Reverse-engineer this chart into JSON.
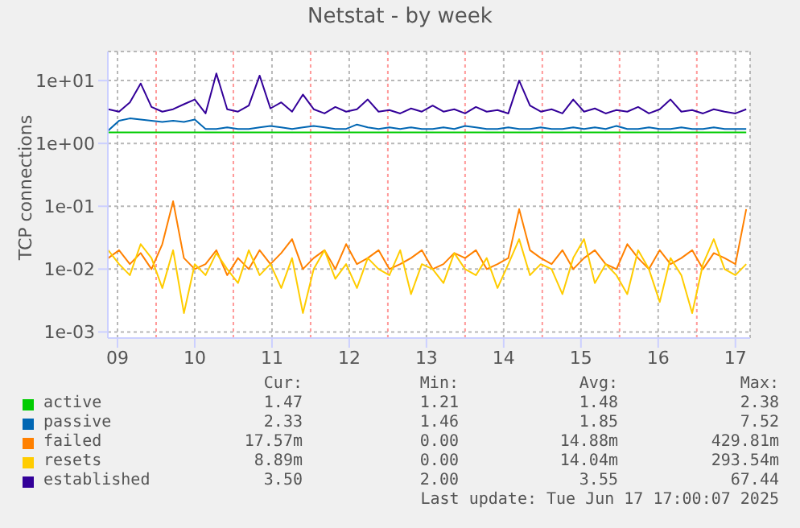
{
  "chart_data": {
    "type": "line",
    "title": "Netstat - by week",
    "ylabel": "TCP connections",
    "log": "y",
    "grid": true,
    "legend": "bottom",
    "marker": "none",
    "line_style": "solid",
    "xlim": [
      9.375,
      17.69
    ],
    "ylim": [
      0.0008,
      29
    ],
    "xticks": [
      {
        "value": 9.5,
        "label": "09"
      },
      {
        "value": 10.5,
        "label": "10"
      },
      {
        "value": 11.5,
        "label": "11"
      },
      {
        "value": 12.5,
        "label": "12"
      },
      {
        "value": 13.5,
        "label": "13"
      },
      {
        "value": 14.5,
        "label": "14"
      },
      {
        "value": 15.5,
        "label": "15"
      },
      {
        "value": 16.5,
        "label": "16"
      },
      {
        "value": 17.5,
        "label": "17"
      }
    ],
    "yticks": [
      {
        "value": 0.001,
        "label": "1e-03"
      },
      {
        "value": 0.01,
        "label": "1e-02"
      },
      {
        "value": 0.1,
        "label": "1e-01"
      },
      {
        "value": 1,
        "label": "1e+00"
      },
      {
        "value": 10,
        "label": "1e+01"
      }
    ],
    "x": [
      9.38,
      9.52,
      9.66,
      9.8,
      9.94,
      10.08,
      10.22,
      10.36,
      10.5,
      10.64,
      10.78,
      10.92,
      11.06,
      11.2,
      11.34,
      11.48,
      11.62,
      11.76,
      11.9,
      12.04,
      12.18,
      12.32,
      12.46,
      12.6,
      12.74,
      12.88,
      13.02,
      13.16,
      13.3,
      13.44,
      13.58,
      13.72,
      13.86,
      14,
      14.14,
      14.28,
      14.42,
      14.56,
      14.7,
      14.84,
      14.98,
      15.12,
      15.26,
      15.4,
      15.54,
      15.68,
      15.82,
      15.96,
      16.1,
      16.24,
      16.38,
      16.52,
      16.66,
      16.8,
      16.94,
      17.08,
      17.22,
      17.36,
      17.5,
      17.64
    ],
    "series": [
      {
        "name": "active",
        "color": "#00cc00",
        "values": [
          1.5,
          1.5,
          1.5,
          1.5,
          1.5,
          1.5,
          1.5,
          1.5,
          1.5,
          1.5,
          1.5,
          1.5,
          1.5,
          1.5,
          1.5,
          1.5,
          1.5,
          1.5,
          1.5,
          1.5,
          1.5,
          1.5,
          1.5,
          1.5,
          1.5,
          1.5,
          1.5,
          1.5,
          1.5,
          1.5,
          1.5,
          1.5,
          1.5,
          1.5,
          1.5,
          1.5,
          1.5,
          1.5,
          1.5,
          1.5,
          1.5,
          1.5,
          1.5,
          1.5,
          1.5,
          1.5,
          1.5,
          1.5,
          1.5,
          1.5,
          1.5,
          1.5,
          1.5,
          1.5,
          1.5,
          1.5,
          1.5,
          1.5,
          1.5,
          1.5
        ]
      },
      {
        "name": "passive",
        "color": "#0066b3",
        "values": [
          1.6,
          2.3,
          2.5,
          2.4,
          2.3,
          2.2,
          2.3,
          2.2,
          2.4,
          1.7,
          1.7,
          1.8,
          1.7,
          1.7,
          1.8,
          1.9,
          1.8,
          1.7,
          1.8,
          1.9,
          1.8,
          1.7,
          1.7,
          2.0,
          1.8,
          1.7,
          1.8,
          1.7,
          1.8,
          1.7,
          1.7,
          1.8,
          1.7,
          1.9,
          1.8,
          1.7,
          1.7,
          1.8,
          1.7,
          1.7,
          1.8,
          1.7,
          1.7,
          1.8,
          1.7,
          1.8,
          1.7,
          1.9,
          1.7,
          1.7,
          1.8,
          1.7,
          1.7,
          1.8,
          1.7,
          1.7,
          1.8,
          1.7,
          1.7,
          1.7
        ]
      },
      {
        "name": "failed",
        "color": "#ff8000",
        "values": [
          0.015,
          0.02,
          0.012,
          0.018,
          0.01,
          0.025,
          0.12,
          0.015,
          0.01,
          0.012,
          0.02,
          0.008,
          0.015,
          0.01,
          0.02,
          0.012,
          0.018,
          0.03,
          0.01,
          0.015,
          0.02,
          0.01,
          0.025,
          0.012,
          0.015,
          0.02,
          0.01,
          0.012,
          0.015,
          0.02,
          0.01,
          0.012,
          0.018,
          0.015,
          0.02,
          0.01,
          0.012,
          0.015,
          0.09,
          0.02,
          0.015,
          0.012,
          0.02,
          0.01,
          0.015,
          0.02,
          0.012,
          0.01,
          0.025,
          0.015,
          0.01,
          0.02,
          0.012,
          0.015,
          0.02,
          0.01,
          0.018,
          0.015,
          0.012,
          0.09
        ]
      },
      {
        "name": "resets",
        "color": "#ffcc00",
        "values": [
          0.02,
          0.012,
          0.008,
          0.025,
          0.015,
          0.005,
          0.02,
          0.002,
          0.012,
          0.008,
          0.018,
          0.01,
          0.006,
          0.02,
          0.008,
          0.012,
          0.005,
          0.015,
          0.002,
          0.01,
          0.02,
          0.007,
          0.012,
          0.005,
          0.015,
          0.01,
          0.008,
          0.02,
          0.004,
          0.012,
          0.01,
          0.006,
          0.018,
          0.01,
          0.008,
          0.015,
          0.005,
          0.012,
          0.03,
          0.008,
          0.012,
          0.01,
          0.004,
          0.015,
          0.03,
          0.006,
          0.012,
          0.008,
          0.004,
          0.02,
          0.01,
          0.003,
          0.015,
          0.008,
          0.002,
          0.012,
          0.03,
          0.01,
          0.008,
          0.012
        ]
      },
      {
        "name": "established",
        "color": "#330099",
        "values": [
          3.5,
          3.2,
          4.5,
          9,
          3.8,
          3.2,
          3.5,
          4.2,
          5,
          3,
          13,
          3.5,
          3.2,
          4,
          12,
          3.6,
          4.5,
          3.2,
          6,
          3.5,
          3,
          3.8,
          3.2,
          3.5,
          5,
          3.2,
          3.4,
          3,
          3.6,
          3.2,
          4,
          3.2,
          3.5,
          3,
          3.8,
          3.2,
          3.4,
          3,
          10,
          4,
          3.2,
          3.5,
          3,
          5,
          3.2,
          3.6,
          3,
          3.4,
          3.2,
          3.8,
          3,
          3.5,
          5,
          3.2,
          3.4,
          3,
          3.5,
          3.2,
          3,
          3.5
        ]
      }
    ],
    "ref_lines": [
      {
        "axis": "x",
        "value": 10,
        "color": "#ff9999",
        "line_style": "dotted"
      },
      {
        "axis": "x",
        "value": 11,
        "color": "#ff9999",
        "line_style": "dotted"
      },
      {
        "axis": "x",
        "value": 12,
        "color": "#ff9999",
        "line_style": "dotted"
      },
      {
        "axis": "x",
        "value": 13,
        "color": "#ff9999",
        "line_style": "dotted"
      },
      {
        "axis": "x",
        "value": 14,
        "color": "#ff9999",
        "line_style": "dotted"
      },
      {
        "axis": "x",
        "value": 15,
        "color": "#ff9999",
        "line_style": "dotted"
      },
      {
        "axis": "x",
        "value": 16,
        "color": "#ff9999",
        "line_style": "dotted"
      },
      {
        "axis": "x",
        "value": 17,
        "color": "#ff9999",
        "line_style": "dotted"
      }
    ],
    "annotations": [
      "Cur:",
      "Min:",
      "Avg:",
      "Max:",
      "1.47",
      "1.21",
      "1.48",
      "2.38",
      "2.33",
      "1.46",
      "1.85",
      "7.52",
      "17.57m",
      "0.00",
      "14.88m",
      "429.81m",
      "8.89m",
      "0.00",
      "14.04m",
      "293.54m",
      "3.50",
      "2.00",
      "3.55",
      "67.44",
      "Last update: Tue Jun 17 17:00:07 2025"
    ]
  }
}
